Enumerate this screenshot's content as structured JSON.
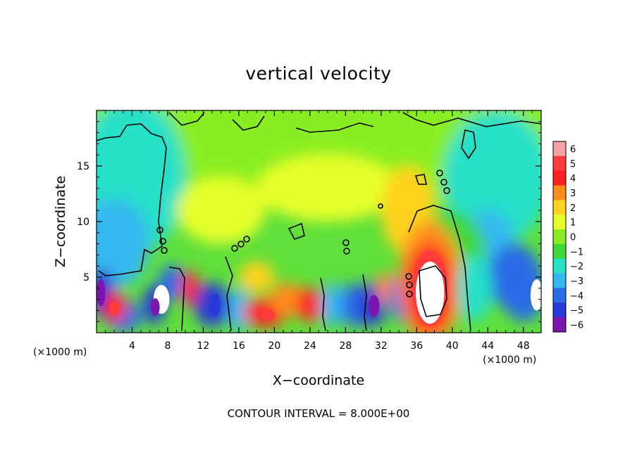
{
  "chart_data": {
    "type": "heatmap",
    "title": "vertical velocity",
    "xlabel": "X−coordinate",
    "ylabel": "Z−coordinate",
    "x_unit_left": "(×1000 m)",
    "x_unit_right": "(×1000 m)",
    "xlim": [
      0,
      50
    ],
    "ylim": [
      0,
      20
    ],
    "x_ticks": [
      4,
      8,
      12,
      16,
      20,
      24,
      28,
      32,
      36,
      40,
      44,
      48
    ],
    "x_tick_labels": [
      "4",
      "8",
      "12",
      "16",
      "20",
      "24",
      "28",
      "32",
      "36",
      "40",
      "44",
      "48"
    ],
    "y_ticks": [
      5,
      10,
      15
    ],
    "y_tick_labels": [
      "5",
      "10",
      "15"
    ],
    "colorbar": {
      "levels": [
        6,
        5,
        4,
        3,
        2,
        1,
        0,
        -1,
        -2,
        -3,
        -4,
        -5,
        -6
      ],
      "labels": [
        "6",
        "5",
        "4",
        "3",
        "2",
        "1",
        "0",
        "−1",
        "−2",
        "−3",
        "−4",
        "−5",
        "−6"
      ],
      "colors": [
        "#f7a1a6",
        "#ff3b3b",
        "#ff2020",
        "#ff8c1a",
        "#ffd21f",
        "#e6ff2a",
        "#88ee22",
        "#3ed839",
        "#28e0c8",
        "#34b8f0",
        "#2a6be6",
        "#2a38d8",
        "#7a16ae"
      ]
    },
    "field_features": [
      {
        "kind": "updraft",
        "x": 37.5,
        "z": 3.5,
        "peak": 8
      },
      {
        "kind": "updraft",
        "x": 7,
        "z": 3,
        "peak": 7
      },
      {
        "kind": "updraft",
        "x": 49.5,
        "z": 3.5,
        "peak": 7
      },
      {
        "kind": "updraft",
        "x": 21.5,
        "z": 3,
        "peak": 4
      },
      {
        "kind": "updraft",
        "x": 24,
        "z": 2.5,
        "peak": 4
      },
      {
        "kind": "updraft",
        "x": 2,
        "z": 2.2,
        "peak": 4
      },
      {
        "kind": "updraft",
        "x": 11,
        "z": 4.5,
        "peak": 3
      },
      {
        "kind": "updraft",
        "x": 35,
        "z": 11,
        "peak": 2
      },
      {
        "kind": "downdraft",
        "x": 0.5,
        "z": 3.5,
        "peak": -6
      },
      {
        "kind": "downdraft",
        "x": 6.5,
        "z": 2.5,
        "peak": -5
      },
      {
        "kind": "downdraft",
        "x": 13,
        "z": 2.5,
        "peak": -5
      },
      {
        "kind": "downdraft",
        "x": 31,
        "z": 2.5,
        "peak": -5
      },
      {
        "kind": "downdraft",
        "x": 47,
        "z": 5,
        "peak": -5
      },
      {
        "kind": "downdraft",
        "x": 44,
        "z": 8,
        "peak": -3
      }
    ],
    "footer": "CONTOUR INTERVAL = 8.000E+00"
  }
}
